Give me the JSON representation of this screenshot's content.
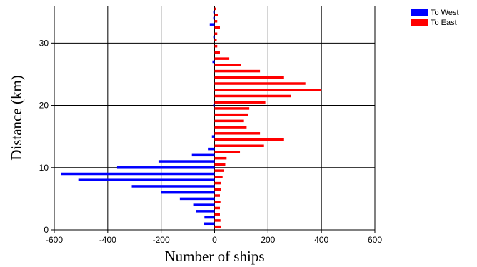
{
  "chart_data": {
    "type": "bar",
    "orientation": "horizontal",
    "xlabel": "Number of ships",
    "ylabel": "Distance (km)",
    "xlim": [
      -600,
      600
    ],
    "ylim": [
      0,
      36
    ],
    "xticks": [
      -600,
      -400,
      -200,
      0,
      200,
      400,
      600
    ],
    "yticks": [
      0,
      10,
      20,
      30
    ],
    "grid": true,
    "legend_position": "top-right",
    "series": [
      {
        "name": "To West",
        "color": "#0000ff",
        "points": [
          {
            "y": 1,
            "x": -40
          },
          {
            "y": 2,
            "x": -38
          },
          {
            "y": 3,
            "x": -70
          },
          {
            "y": 4,
            "x": -80
          },
          {
            "y": 5,
            "x": -130
          },
          {
            "y": 6,
            "x": -200
          },
          {
            "y": 7,
            "x": -310
          },
          {
            "y": 8,
            "x": -510
          },
          {
            "y": 9,
            "x": -575
          },
          {
            "y": 10,
            "x": -365
          },
          {
            "y": 11,
            "x": -210
          },
          {
            "y": 12,
            "x": -85
          },
          {
            "y": 13,
            "x": -25
          },
          {
            "y": 15,
            "x": -10
          },
          {
            "y": 20,
            "x": -5
          },
          {
            "y": 27,
            "x": -8
          },
          {
            "y": 31,
            "x": -5
          },
          {
            "y": 33,
            "x": -18
          },
          {
            "y": 34,
            "x": -5
          },
          {
            "y": 35,
            "x": -5
          }
        ]
      },
      {
        "name": "To East",
        "color": "#ff0000",
        "points": [
          {
            "y": 0.5,
            "x": 25
          },
          {
            "y": 1.5,
            "x": 22
          },
          {
            "y": 2.5,
            "x": 20
          },
          {
            "y": 3.5,
            "x": 20
          },
          {
            "y": 4.5,
            "x": 22
          },
          {
            "y": 5.5,
            "x": 20
          },
          {
            "y": 6.5,
            "x": 25
          },
          {
            "y": 7.5,
            "x": 25
          },
          {
            "y": 8.5,
            "x": 30
          },
          {
            "y": 9.5,
            "x": 35
          },
          {
            "y": 10.5,
            "x": 40
          },
          {
            "y": 11.5,
            "x": 45
          },
          {
            "y": 12.5,
            "x": 95
          },
          {
            "y": 13.5,
            "x": 185
          },
          {
            "y": 14.5,
            "x": 260
          },
          {
            "y": 15.5,
            "x": 170
          },
          {
            "y": 16.5,
            "x": 120
          },
          {
            "y": 17.5,
            "x": 110
          },
          {
            "y": 18.5,
            "x": 125
          },
          {
            "y": 19.5,
            "x": 130
          },
          {
            "y": 20.5,
            "x": 190
          },
          {
            "y": 21.5,
            "x": 285
          },
          {
            "y": 22.5,
            "x": 400
          },
          {
            "y": 23.5,
            "x": 340
          },
          {
            "y": 24.5,
            "x": 260
          },
          {
            "y": 25.5,
            "x": 170
          },
          {
            "y": 26.5,
            "x": 100
          },
          {
            "y": 27.5,
            "x": 55
          },
          {
            "y": 28.5,
            "x": 20
          },
          {
            "y": 29.5,
            "x": 10
          },
          {
            "y": 30.5,
            "x": 8
          },
          {
            "y": 31.5,
            "x": 10
          },
          {
            "y": 32.5,
            "x": 20
          },
          {
            "y": 33.5,
            "x": 10
          },
          {
            "y": 34.5,
            "x": 12
          },
          {
            "y": 35.5,
            "x": 5
          }
        ]
      }
    ]
  }
}
